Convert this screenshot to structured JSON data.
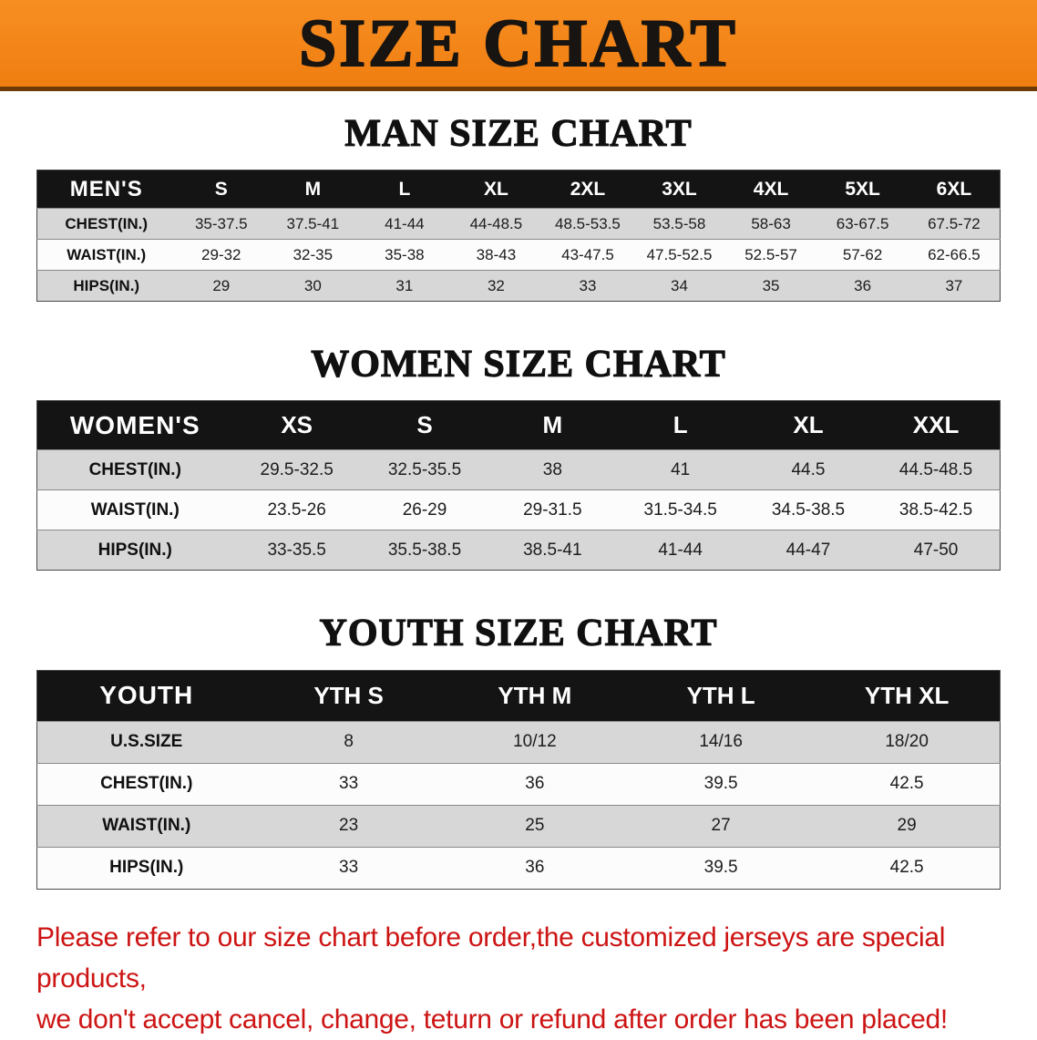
{
  "banner": {
    "title": "SIZE CHART"
  },
  "colors": {
    "banner_bg": "#f07e11",
    "banner_bg_light": "#f78e22",
    "banner_border": "#6b3a06",
    "banner_text": "#181411",
    "header_bg": "#141414",
    "header_text": "#ffffff",
    "stripe_row": "#d7d7d7",
    "white_row": "#fcfcfc",
    "text": "#1c1c1c",
    "disclaimer": "#cd1414"
  },
  "sections": [
    {
      "id": "men",
      "heading": "MAN SIZE CHART",
      "table": {
        "header_label": "MEN'S",
        "columns": [
          "S",
          "M",
          "L",
          "XL",
          "2XL",
          "3XL",
          "4XL",
          "5XL",
          "6XL"
        ],
        "rows": [
          {
            "label": "CHEST(IN.)",
            "values": [
              "35-37.5",
              "37.5-41",
              "41-44",
              "44-48.5",
              "48.5-53.5",
              "53.5-58",
              "58-63",
              "63-67.5",
              "67.5-72"
            ]
          },
          {
            "label": "WAIST(IN.)",
            "values": [
              "29-32",
              "32-35",
              "35-38",
              "38-43",
              "43-47.5",
              "47.5-52.5",
              "52.5-57",
              "57-62",
              "62-66.5"
            ]
          },
          {
            "label": "HIPS(IN.)",
            "values": [
              "29",
              "30",
              "31",
              "32",
              "33",
              "34",
              "35",
              "36",
              "37"
            ]
          }
        ]
      }
    },
    {
      "id": "women",
      "heading": "WOMEN SIZE CHART",
      "table": {
        "header_label": "WOMEN'S",
        "columns": [
          "XS",
          "S",
          "M",
          "L",
          "XL",
          "XXL"
        ],
        "rows": [
          {
            "label": "CHEST(IN.)",
            "values": [
              "29.5-32.5",
              "32.5-35.5",
              "38",
              "41",
              "44.5",
              "44.5-48.5"
            ]
          },
          {
            "label": "WAIST(IN.)",
            "values": [
              "23.5-26",
              "26-29",
              "29-31.5",
              "31.5-34.5",
              "34.5-38.5",
              "38.5-42.5"
            ]
          },
          {
            "label": "HIPS(IN.)",
            "values": [
              "33-35.5",
              "35.5-38.5",
              "38.5-41",
              "41-44",
              "44-47",
              "47-50"
            ]
          }
        ]
      }
    },
    {
      "id": "youth",
      "heading": "YOUTH SIZE CHART",
      "table": {
        "header_label": "YOUTH",
        "columns": [
          "YTH S",
          "YTH M",
          "YTH L",
          "YTH XL"
        ],
        "rows": [
          {
            "label": "U.S.SIZE",
            "values": [
              "8",
              "10/12",
              "14/16",
              "18/20"
            ]
          },
          {
            "label": "CHEST(IN.)",
            "values": [
              "33",
              "36",
              "39.5",
              "42.5"
            ]
          },
          {
            "label": "WAIST(IN.)",
            "values": [
              "23",
              "25",
              "27",
              "29"
            ]
          },
          {
            "label": "HIPS(IN.)",
            "values": [
              "33",
              "36",
              "39.5",
              "42.5"
            ]
          }
        ]
      }
    }
  ],
  "disclaimer": {
    "lines": [
      "Please refer to our size chart before order,the customized jerseys are special products,",
      "we don't accept cancel, change, teturn or refund after order has been placed!"
    ]
  }
}
